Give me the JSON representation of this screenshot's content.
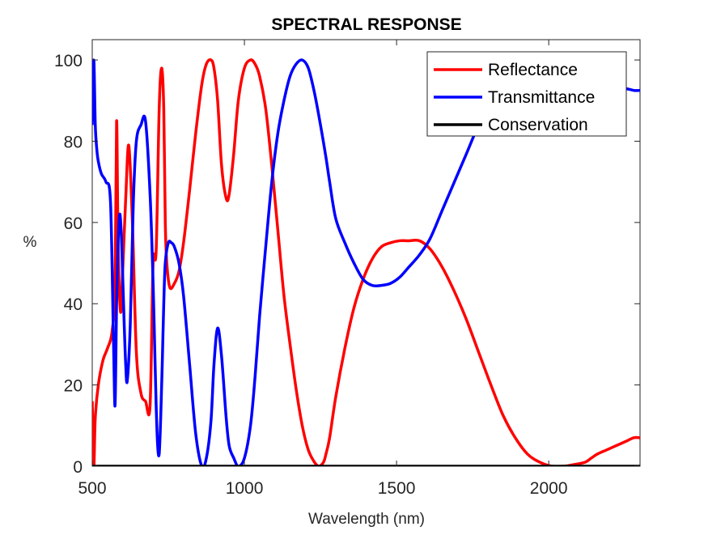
{
  "chart_data": {
    "type": "line",
    "title": "SPECTRAL RESPONSE",
    "xlabel": "Wavelength (nm)",
    "ylabel": "%",
    "xlim": [
      500,
      2300
    ],
    "ylim": [
      0,
      105
    ],
    "xticks": [
      500,
      1000,
      1500,
      2000
    ],
    "yticks": [
      0,
      20,
      40,
      60,
      80,
      100
    ],
    "grid": false,
    "legend_position": "top-right",
    "series": [
      {
        "name": "Reflectance",
        "color": "#ff0000",
        "x": [
          500,
          505,
          510,
          520,
          535,
          550,
          565,
          575,
          580,
          585,
          593,
          600,
          610,
          620,
          632,
          645,
          660,
          675,
          690,
          700,
          710,
          720,
          728,
          735,
          740,
          745,
          755,
          770,
          785,
          800,
          820,
          840,
          860,
          875,
          890,
          900,
          912,
          925,
          940,
          950,
          965,
          980,
          1000,
          1020,
          1035,
          1050,
          1070,
          1090,
          1110,
          1130,
          1150,
          1170,
          1190,
          1210,
          1230,
          1245,
          1260,
          1268,
          1280,
          1300,
          1330,
          1360,
          1390,
          1420,
          1450,
          1480,
          1510,
          1540,
          1575,
          1610,
          1650,
          1690,
          1730,
          1770,
          1810,
          1850,
          1890,
          1930,
          1970,
          2010,
          2050,
          2090,
          2120,
          2140,
          2160,
          2190,
          2220,
          2250,
          2280,
          2300
        ],
        "y": [
          16,
          0,
          12,
          20,
          26,
          29,
          33,
          45,
          85,
          55,
          38,
          48,
          66,
          79,
          60,
          28,
          18,
          16,
          15,
          50,
          53,
          88,
          98,
          88,
          60,
          50,
          44,
          45,
          48,
          55,
          68,
          82,
          94,
          99,
          100,
          98,
          90,
          74,
          66,
          67,
          77,
          90,
          98,
          100,
          99,
          96,
          88,
          74,
          58,
          42,
          30,
          19,
          10,
          4,
          1,
          0,
          1,
          3,
          7,
          17,
          29,
          39,
          46,
          51,
          54,
          55,
          55.5,
          55.5,
          55.5,
          53.5,
          49,
          43,
          36,
          28,
          20,
          12.5,
          7,
          3,
          1,
          0,
          0,
          0.5,
          1,
          2,
          3,
          4,
          5,
          6,
          7,
          7
        ]
      },
      {
        "name": "Transmittance",
        "color": "#0000ff",
        "x": [
          500,
          505,
          510,
          515,
          520,
          530,
          545,
          560,
          570,
          575,
          580,
          585,
          590,
          595,
          600,
          605,
          610,
          615,
          625,
          635,
          645,
          660,
          675,
          690,
          700,
          705,
          710,
          715,
          720,
          725,
          730,
          735,
          740,
          750,
          760,
          770,
          785,
          800,
          820,
          840,
          860,
          875,
          890,
          900,
          912,
          925,
          940,
          950,
          965,
          980,
          1000,
          1020,
          1035,
          1050,
          1070,
          1090,
          1110,
          1130,
          1150,
          1170,
          1190,
          1210,
          1230,
          1250,
          1268,
          1280,
          1300,
          1330,
          1360,
          1390,
          1420,
          1450,
          1480,
          1510,
          1540,
          1575,
          1610,
          1650,
          1690,
          1730,
          1770,
          1810,
          1850,
          1890,
          1930,
          1970,
          2010,
          2050,
          2090,
          2120,
          2140,
          2160,
          2190,
          2220,
          2250,
          2280,
          2300
        ],
        "y": [
          84,
          100,
          84,
          78,
          75,
          72,
          70,
          65,
          30,
          15,
          40,
          55,
          62,
          58,
          47,
          35,
          25,
          21,
          35,
          65,
          80,
          84,
          85,
          67,
          45,
          30,
          15,
          5,
          3,
          12,
          25,
          40,
          50,
          55,
          55,
          54,
          50,
          42,
          25,
          8,
          0,
          2,
          11,
          25,
          34,
          27,
          12,
          5,
          2,
          0,
          2,
          10,
          22,
          37,
          54,
          70,
          82,
          90,
          96,
          99,
          100,
          98,
          92,
          84,
          76,
          70,
          61,
          55,
          50,
          46,
          44.5,
          44.5,
          45,
          46.5,
          49,
          52,
          56,
          63,
          70,
          77,
          84,
          89,
          92,
          95,
          97,
          98,
          99,
          99,
          98,
          96,
          95,
          94,
          93,
          93,
          93,
          92.5,
          92.5
        ]
      },
      {
        "name": "Conservation",
        "color": "#000000",
        "x": [
          500,
          2300
        ],
        "y": [
          0,
          0
        ]
      }
    ]
  }
}
